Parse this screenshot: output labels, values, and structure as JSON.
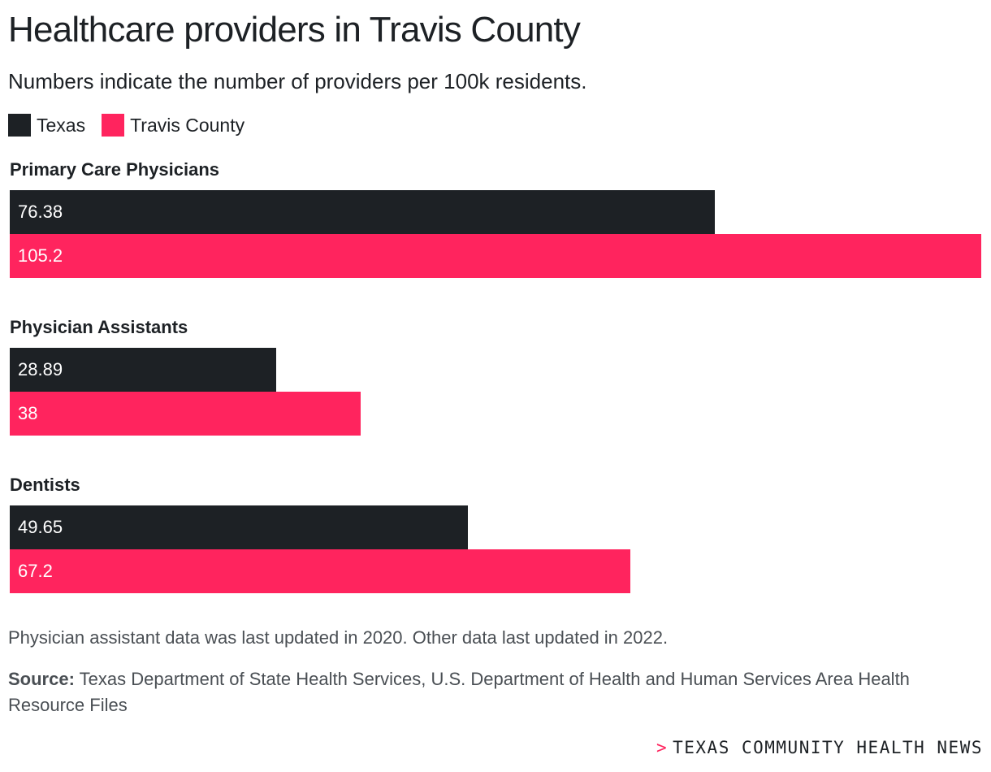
{
  "header": {
    "title": "Healthcare providers in Travis County",
    "subtitle": "Numbers indicate the number of providers per 100k residents."
  },
  "legend": {
    "items": [
      {
        "label": "Texas",
        "color": "#1d2125"
      },
      {
        "label": "Travis County",
        "color": "#ff245e"
      }
    ]
  },
  "chart_data": {
    "type": "bar",
    "orientation": "horizontal",
    "title": "Healthcare providers in Travis County",
    "subtitle": "Numbers indicate the number of providers per 100k residents.",
    "categories": [
      "Primary Care Physicians",
      "Physician Assistants",
      "Dentists"
    ],
    "series": [
      {
        "name": "Texas",
        "color": "#1d2125",
        "values": [
          76.38,
          28.89,
          49.65
        ],
        "labels": [
          "76.38",
          "28.89",
          "49.65"
        ]
      },
      {
        "name": "Travis County",
        "color": "#ff245e",
        "values": [
          105.2,
          38,
          67.2
        ],
        "labels": [
          "105.2",
          "38",
          "67.2"
        ]
      }
    ],
    "xlim": [
      0,
      105.2
    ],
    "grid": false,
    "legend_position": "top-left"
  },
  "footer": {
    "note": "Physician assistant data was last updated in 2020. Other data last updated in 2022.",
    "source_label": "Source:",
    "source_text": "Texas Department of State Health Services, U.S. Department of Health and Human Services Area Health Resource Files",
    "brand_mark": ">",
    "brand": "TEXAS COMMUNITY HEALTH NEWS"
  }
}
